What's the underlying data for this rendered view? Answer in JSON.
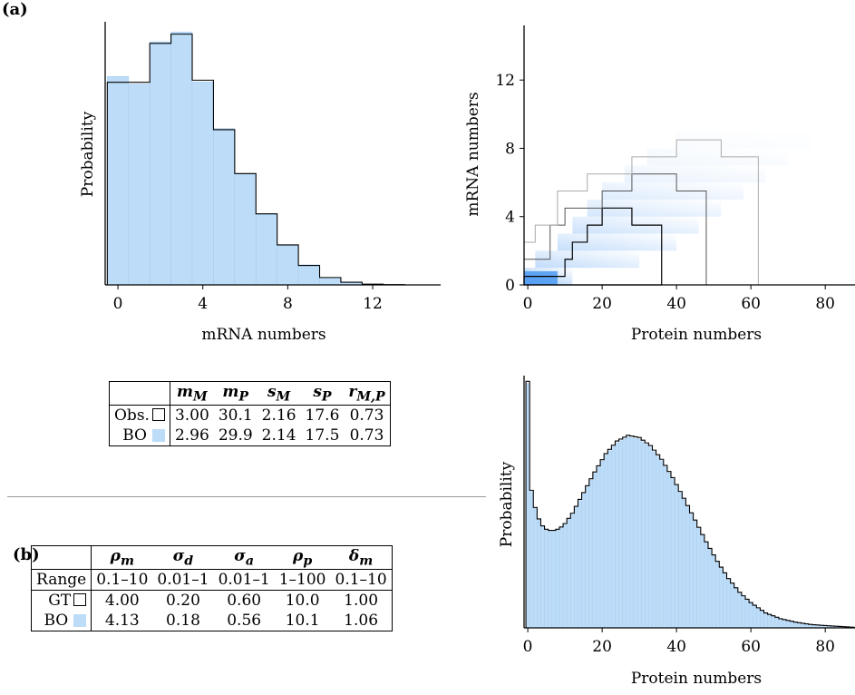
{
  "panel_labels": {
    "a": "(a)",
    "b": "(b)"
  },
  "chart_data": [
    {
      "id": "mrna_hist",
      "type": "bar",
      "xlabel": "mRNA numbers",
      "ylabel": "Probability",
      "xticks": [
        0,
        4,
        8,
        12
      ],
      "xlim": [
        -0.6,
        15.2
      ],
      "ylim": [
        0,
        0.1
      ],
      "x": [
        0,
        1,
        2,
        3,
        4,
        5,
        6,
        7,
        8,
        9,
        10,
        11,
        12,
        13,
        14
      ],
      "series": [
        {
          "values": [
            0.0792,
            0.0763,
            0.0924,
            0.0961,
            0.0771,
            0.0594,
            0.0421,
            0.0268,
            0.015,
            0.0076,
            0.0028,
            0.0009,
            0.0003,
            0.0001,
            0.0
          ]
        },
        {
          "values": [
            0.077,
            0.077,
            0.0918,
            0.0953,
            0.0778,
            0.059,
            0.0423,
            0.027,
            0.0152,
            0.0074,
            0.0028,
            0.001,
            0.0003,
            0.0001,
            0.0
          ]
        }
      ]
    },
    {
      "id": "joint_heatmap",
      "type": "heatmap",
      "xlabel": "Protein numbers",
      "ylabel": "mRNA numbers",
      "xticks": [
        0,
        20,
        40,
        60,
        80
      ],
      "yticks": [
        0,
        4,
        8,
        12
      ],
      "xlim": [
        -1,
        88
      ],
      "ylim": [
        0,
        15.2
      ],
      "grid": false
    },
    {
      "id": "protein_hist",
      "type": "bar",
      "xlabel": "Protein numbers",
      "ylabel": "Probability",
      "xticks": [
        0,
        20,
        40,
        60,
        80
      ],
      "xlim": [
        -1,
        88
      ],
      "ylim": [
        0,
        0.022
      ],
      "curve_points": [
        [
          0,
          0.0215
        ],
        [
          1,
          0.012
        ],
        [
          2,
          0.0105
        ],
        [
          3,
          0.0095
        ],
        [
          4,
          0.0089
        ],
        [
          5,
          0.0086
        ],
        [
          6,
          0.0085
        ],
        [
          7,
          0.0085
        ],
        [
          8,
          0.0086
        ],
        [
          9,
          0.0088
        ],
        [
          10,
          0.0091
        ],
        [
          12,
          0.01
        ],
        [
          15,
          0.0118
        ],
        [
          18,
          0.0136
        ],
        [
          21,
          0.0152
        ],
        [
          24,
          0.0163
        ],
        [
          27,
          0.0168
        ],
        [
          30,
          0.0166
        ],
        [
          33,
          0.0159
        ],
        [
          36,
          0.0147
        ],
        [
          39,
          0.0131
        ],
        [
          42,
          0.0113
        ],
        [
          45,
          0.0094
        ],
        [
          48,
          0.0075
        ],
        [
          51,
          0.0058
        ],
        [
          54,
          0.0043
        ],
        [
          57,
          0.0031
        ],
        [
          60,
          0.0022
        ],
        [
          64,
          0.0013
        ],
        [
          68,
          0.0008
        ],
        [
          72,
          0.0005
        ],
        [
          76,
          0.0003
        ],
        [
          80,
          0.0002
        ],
        [
          85,
          0.0001
        ],
        [
          88,
          5e-05
        ]
      ]
    }
  ],
  "table_a": {
    "headers": [
      "m_M",
      "m_P",
      "s_M",
      "s_P",
      "r_M,P"
    ],
    "rows": [
      {
        "label": "Obs.",
        "values": [
          "3.00",
          "30.1",
          "2.16",
          "17.6",
          "0.73"
        ]
      },
      {
        "label": "BO",
        "values": [
          "2.96",
          "29.9",
          "2.14",
          "17.5",
          "0.73"
        ]
      }
    ]
  },
  "table_b": {
    "headers": [
      "ρ_m",
      "σ_d",
      "σ_a",
      "ρ_p",
      "δ_m"
    ],
    "rows": [
      {
        "label": "Range",
        "values": [
          "0.1–10",
          "0.01–1",
          "0.01–1",
          "1–100",
          "0.1–10"
        ]
      },
      {
        "label": "GT",
        "values": [
          "4.00",
          "0.20",
          "0.60",
          "10.0",
          "1.00"
        ]
      },
      {
        "label": "BO",
        "values": [
          "4.13",
          "0.18",
          "0.56",
          "10.1",
          "1.06"
        ]
      }
    ]
  }
}
